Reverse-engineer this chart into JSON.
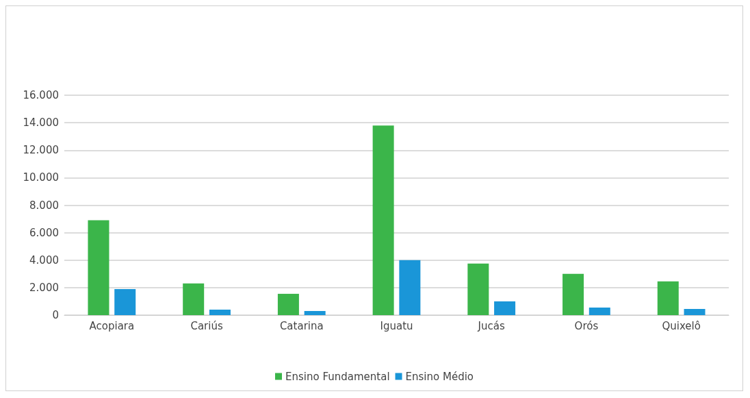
{
  "chart_data": {
    "type": "bar",
    "categories": [
      "Acopiara",
      "Cariús",
      "Catarina",
      "Iguatu",
      "Jucás",
      "Orós",
      "Quixelô"
    ],
    "series": [
      {
        "name": "Ensino Fundamental",
        "color": "#3bb54a",
        "values": [
          6900,
          2300,
          1550,
          13800,
          3750,
          3000,
          2450
        ]
      },
      {
        "name": "Ensino Médio",
        "color": "#1a96d8",
        "values": [
          1900,
          400,
          300,
          4000,
          1000,
          550,
          450
        ]
      }
    ],
    "ylim": [
      0,
      16000
    ],
    "yticks": [
      {
        "value": 0,
        "label": "0"
      },
      {
        "value": 2000,
        "label": "2.000"
      },
      {
        "value": 4000,
        "label": "4.000"
      },
      {
        "value": 6000,
        "label": "6.000"
      },
      {
        "value": 8000,
        "label": "8.000"
      },
      {
        "value": 10000,
        "label": "10.000"
      },
      {
        "value": 12000,
        "label": "12.000"
      },
      {
        "value": 14000,
        "label": "14.000"
      },
      {
        "value": 16000,
        "label": "16.000"
      }
    ],
    "grid": "y",
    "legend": "bottom"
  }
}
